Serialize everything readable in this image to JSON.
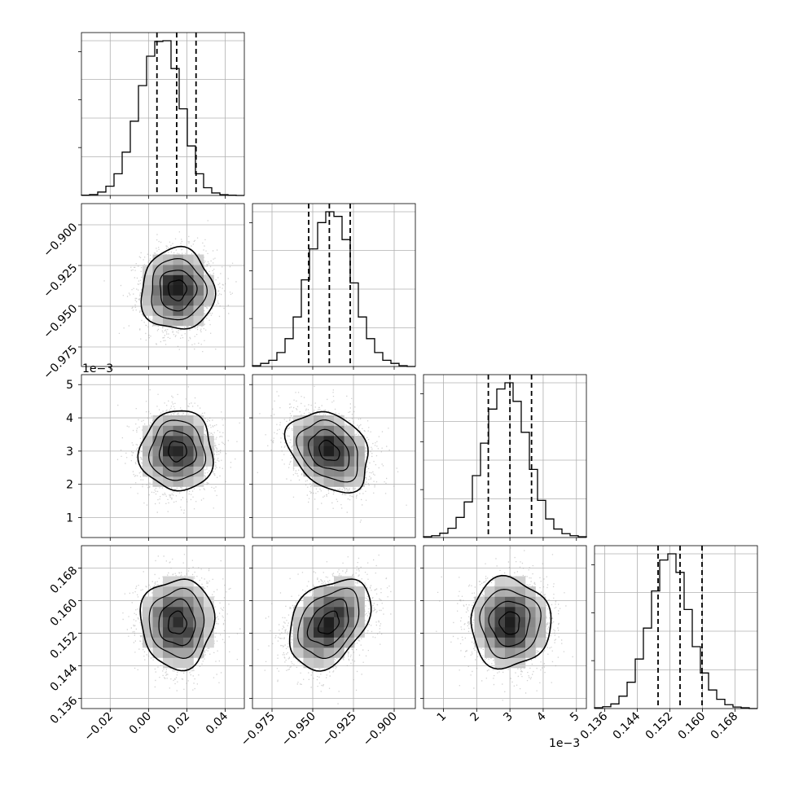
{
  "chart_data": {
    "type": "corner",
    "title": "",
    "grid": true,
    "parameters": [
      {
        "name": "",
        "range": [
          -0.035,
          0.05
        ],
        "ticks": [
          -0.02,
          0.0,
          0.02,
          0.04
        ],
        "tick_labels": [
          "−0.02",
          "0.00",
          "0.02",
          "0.04"
        ],
        "offset_text": "",
        "center": 0.015,
        "sigma": 0.0095,
        "quantiles": [
          0.0044,
          0.0147,
          0.0248
        ],
        "hist_edges": [
          -0.035,
          -0.03075,
          -0.0265,
          -0.02225,
          -0.018,
          -0.01375,
          -0.0095,
          -0.00525,
          -0.001,
          0.00325,
          0.0075,
          0.01175,
          0.016,
          0.02025,
          0.0245,
          0.02875,
          0.033,
          0.03725,
          0.0415,
          0.04575,
          0.05
        ],
        "hist_counts": [
          2,
          6,
          22,
          60,
          140,
          280,
          480,
          710,
          900,
          995,
          1000,
          820,
          560,
          320,
          140,
          50,
          16,
          5,
          2,
          0
        ]
      },
      {
        "name": "",
        "range": [
          -0.987,
          -0.887
        ],
        "ticks": [
          -0.975,
          -0.95,
          -0.925,
          -0.9
        ],
        "tick_labels": [
          "−0.975",
          "−0.950",
          "−0.925",
          "−0.900"
        ],
        "offset_text": "",
        "center": -0.94,
        "sigma": 0.0125,
        "quantiles": [
          -0.9525,
          -0.9398,
          -0.927
        ],
        "hist_edges": [
          -0.987,
          -0.982,
          -0.977,
          -0.972,
          -0.967,
          -0.962,
          -0.957,
          -0.952,
          -0.947,
          -0.942,
          -0.937,
          -0.932,
          -0.927,
          -0.922,
          -0.917,
          -0.912,
          -0.907,
          -0.902,
          -0.897,
          -0.892,
          -0.887
        ],
        "hist_counts": [
          5,
          20,
          40,
          90,
          180,
          320,
          560,
          760,
          930,
          1000,
          970,
          820,
          540,
          320,
          180,
          90,
          40,
          20,
          5,
          0
        ]
      },
      {
        "name": "",
        "range": [
          0.4,
          5.3
        ],
        "ticks": [
          1,
          2,
          3,
          4,
          5
        ],
        "tick_labels": [
          "1",
          "2",
          "3",
          "4",
          "5"
        ],
        "offset_text": "1e−3",
        "center": 3.0,
        "sigma": 0.6,
        "quantiles": [
          2.35,
          3.0,
          3.65
        ],
        "hist_edges": [
          0.4,
          0.645,
          0.89,
          1.135,
          1.38,
          1.625,
          1.87,
          2.115,
          2.36,
          2.605,
          2.85,
          3.095,
          3.34,
          3.585,
          3.83,
          4.075,
          4.32,
          4.565,
          4.81,
          5.055,
          5.3
        ],
        "hist_counts": [
          5,
          12,
          28,
          60,
          130,
          230,
          400,
          610,
          830,
          960,
          1000,
          880,
          680,
          440,
          240,
          120,
          55,
          25,
          12,
          5
        ]
      },
      {
        "name": "",
        "range": [
          0.1335,
          0.1735
        ],
        "ticks": [
          0.136,
          0.144,
          0.152,
          0.16,
          0.168
        ],
        "tick_labels": [
          "0.136",
          "0.144",
          "0.152",
          "0.160",
          "0.168"
        ],
        "offset_text": "",
        "center": 0.1545,
        "sigma": 0.0055,
        "quantiles": [
          0.1491,
          0.1545,
          0.1599
        ],
        "hist_edges": [
          0.1335,
          0.1355,
          0.1375,
          0.1395,
          0.1415,
          0.1435,
          0.1455,
          0.1475,
          0.1495,
          0.1515,
          0.1535,
          0.1555,
          0.1575,
          0.1595,
          0.1615,
          0.1635,
          0.1655,
          0.1675,
          0.1695,
          0.1715,
          0.1735
        ],
        "hist_counts": [
          5,
          12,
          30,
          80,
          170,
          320,
          520,
          760,
          960,
          1000,
          880,
          640,
          400,
          230,
          120,
          60,
          25,
          10,
          5,
          0
        ]
      }
    ],
    "correlations": [
      {
        "row": 1,
        "col": 0,
        "rho": 0.0
      },
      {
        "row": 2,
        "col": 0,
        "rho": 0.0
      },
      {
        "row": 2,
        "col": 1,
        "rho": -0.3
      },
      {
        "row": 3,
        "col": 0,
        "rho": 0.0
      },
      {
        "row": 3,
        "col": 1,
        "rho": 0.35
      },
      {
        "row": 3,
        "col": 2,
        "rho": 0.0
      }
    ],
    "contour_levels_sigma": [
      0.5,
      1.0,
      1.5,
      2.0
    ],
    "line_style_quantiles": "dashed"
  }
}
